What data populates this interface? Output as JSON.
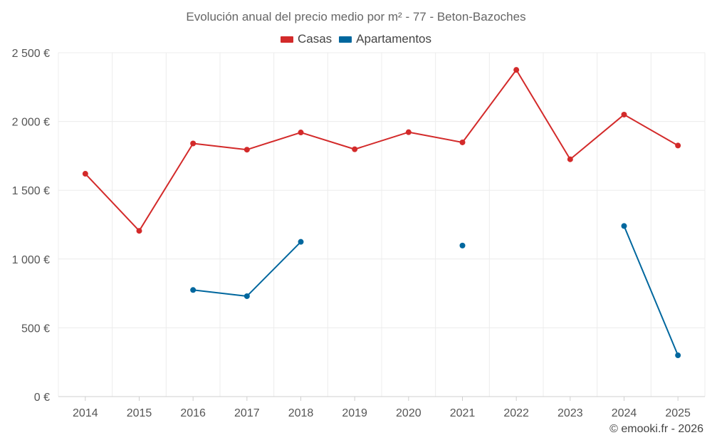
{
  "chart_data": {
    "type": "line",
    "title": "Evolución anual del precio medio por m² - 77 - Beton-Bazoches",
    "categories": [
      "2014",
      "2015",
      "2016",
      "2017",
      "2018",
      "2019",
      "2020",
      "2021",
      "2022",
      "2023",
      "2024",
      "2025"
    ],
    "ylim": [
      0,
      2500
    ],
    "yticks": [
      0,
      500,
      1000,
      1500,
      2000,
      2500
    ],
    "ytick_labels": [
      "0 €",
      "500 €",
      "1 000 €",
      "1 500 €",
      "2 000 €",
      "2 500 €"
    ],
    "grid": true,
    "legend_position": "top-center",
    "series": [
      {
        "name": "Casas",
        "color": "#d32a2a",
        "values": [
          1620,
          1205,
          1840,
          1795,
          1920,
          1798,
          1922,
          1848,
          2375,
          1725,
          2050,
          1825
        ]
      },
      {
        "name": "Apartamentos",
        "color": "#00679e",
        "values": [
          null,
          null,
          775,
          730,
          1125,
          null,
          null,
          1098,
          null,
          null,
          1240,
          300
        ]
      }
    ]
  },
  "credit": "© emooki.fr - 2026"
}
